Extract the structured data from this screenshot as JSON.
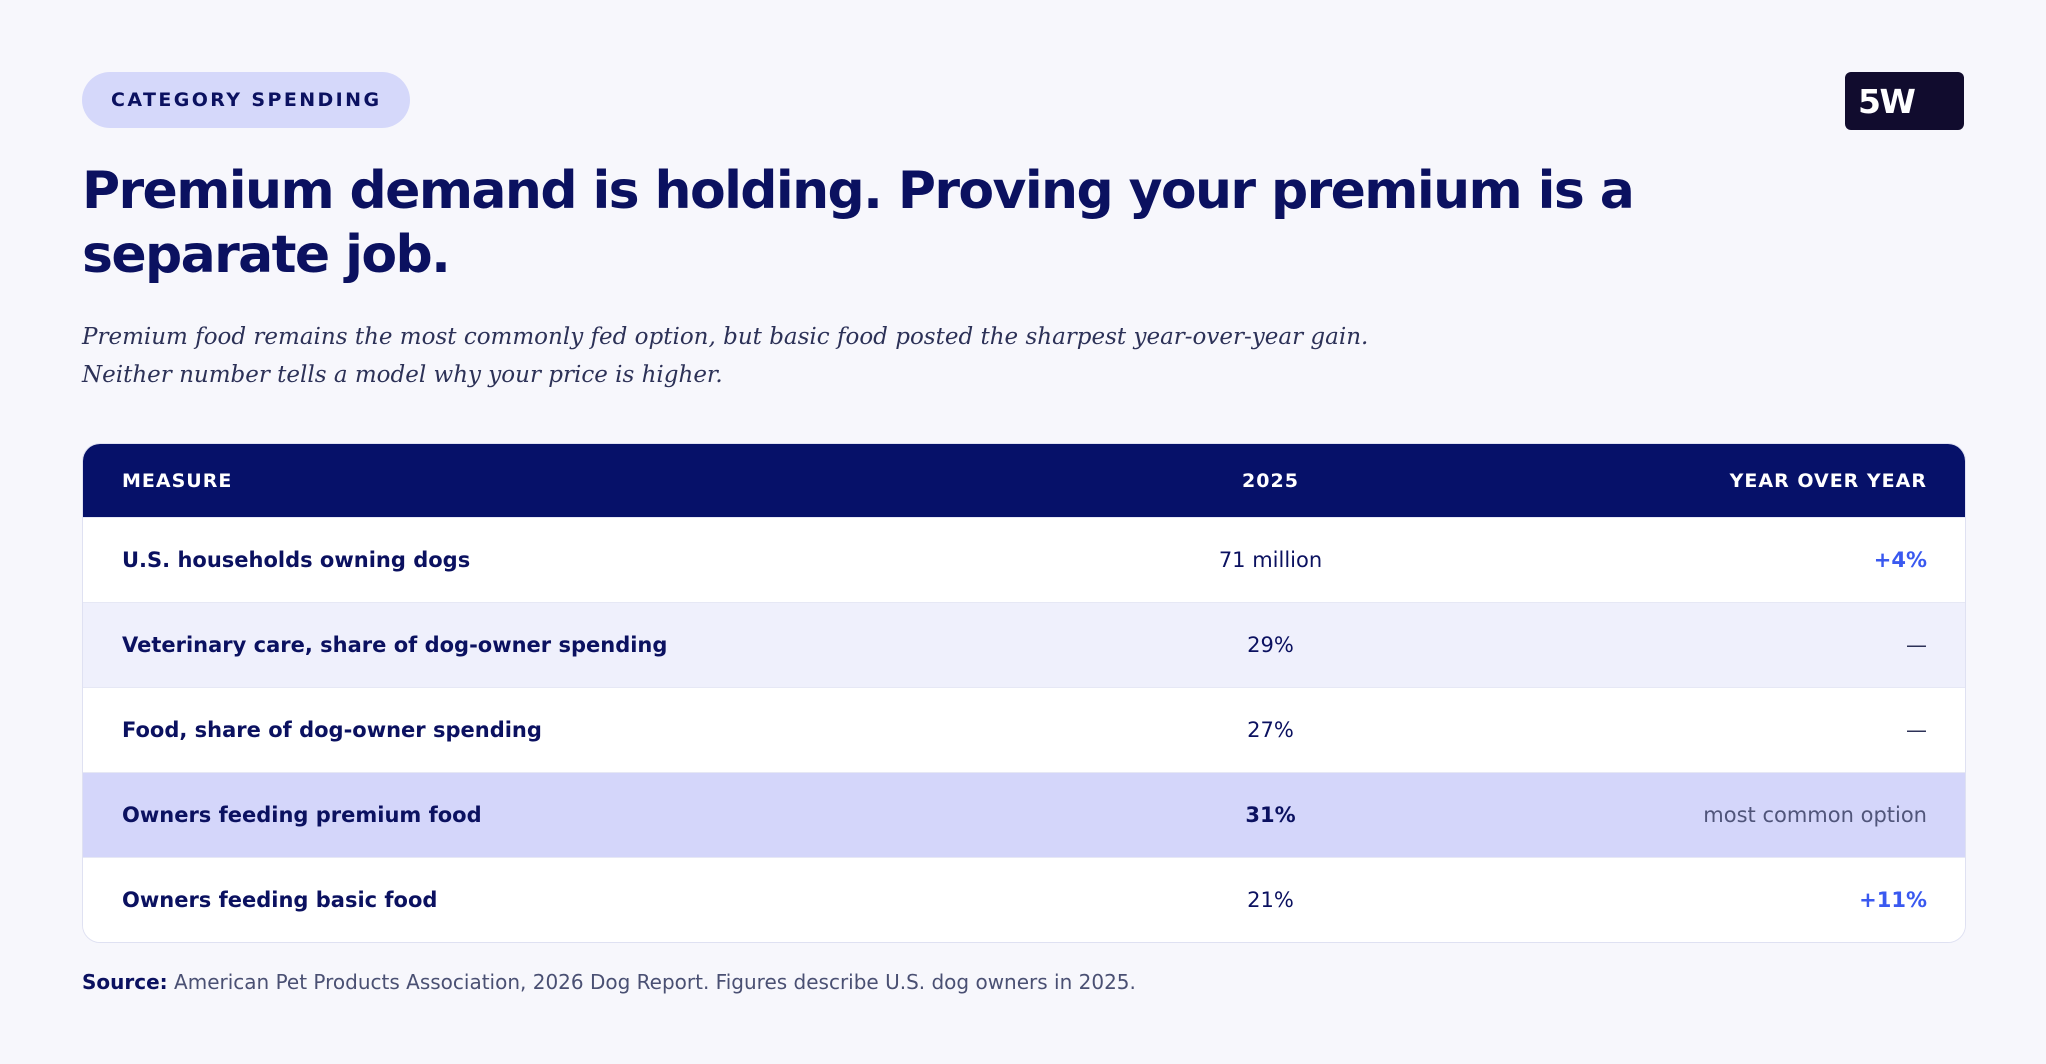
{
  "badge": "CATEGORY SPENDING",
  "logo": "5W",
  "title": "Premium demand is holding. Proving your premium is a separate job.",
  "subtitle": {
    "line1": "Premium food remains the most commonly fed option, but basic food posted the sharpest year-over-year gain.",
    "line2": "Neither number tells a model why your price is higher."
  },
  "table": {
    "headers": [
      "MEASURE",
      "2025",
      "YEAR OVER YEAR"
    ],
    "rows": [
      {
        "measure": "U.S. households owning dogs",
        "value": "71 million",
        "yoy": "+4%"
      },
      {
        "measure": "Veterinary care, share of dog-owner spending",
        "value": "29%",
        "yoy": "—"
      },
      {
        "measure": "Food, share of dog-owner spending",
        "value": "27%",
        "yoy": "—"
      },
      {
        "measure": "Owners feeding premium food",
        "value": "31%",
        "yoy": "most common option"
      },
      {
        "measure": "Owners feeding basic food",
        "value": "21%",
        "yoy": "+11%"
      }
    ]
  },
  "source": {
    "label": "Source:",
    "text": "American Pet Products Association, 2026 Dog Report. Figures describe U.S. dog owners in 2025."
  },
  "colors": {
    "navy": "#061169",
    "accent_blue": "#3a59f0",
    "highlight_row": "#d4d6fa",
    "badge_bg": "#d5d8fa"
  }
}
